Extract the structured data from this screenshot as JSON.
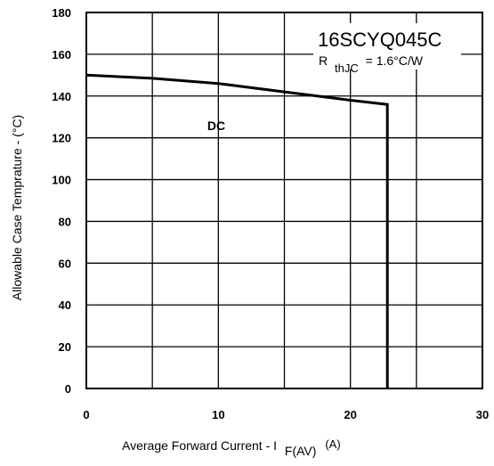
{
  "chart_data": {
    "type": "line",
    "title": "",
    "xlabel": {
      "main": "Average Forward Current  - I",
      "subscript": "F(AV)",
      "unit": "(A)"
    },
    "ylabel": "Allowable Case Temprature - (°C)",
    "xlim": [
      0,
      30
    ],
    "ylim": [
      0,
      180
    ],
    "x_ticks": [
      0,
      10,
      20,
      30
    ],
    "x_tick_labels": [
      "0",
      "10",
      "20",
      "30"
    ],
    "y_ticks": [
      0,
      20,
      40,
      60,
      80,
      100,
      120,
      140,
      160,
      180
    ],
    "y_tick_labels": [
      "0",
      "20",
      "40",
      "60",
      "80",
      "100",
      "120",
      "140",
      "160",
      "180"
    ],
    "x_gridlines": [
      0,
      5,
      10,
      15,
      20,
      25,
      30
    ],
    "y_gridlines": [
      0,
      20,
      40,
      60,
      80,
      100,
      120,
      140,
      160,
      180
    ],
    "grid": true,
    "series": [
      {
        "name": "DC",
        "x": [
          0,
          5,
          10,
          15,
          20,
          22.8,
          22.8
        ],
        "y": [
          150,
          148.5,
          146,
          142,
          138,
          136,
          0
        ]
      }
    ],
    "annotations": {
      "part_number": "16SCYQ045C",
      "rth_prefix": "R",
      "rth_sub": "thJC",
      "rth_value": "=  1.6°C/W",
      "series_label": "DC"
    },
    "colors": {
      "line": "#000000",
      "grid": "#000000",
      "background": "#ffffff"
    }
  }
}
